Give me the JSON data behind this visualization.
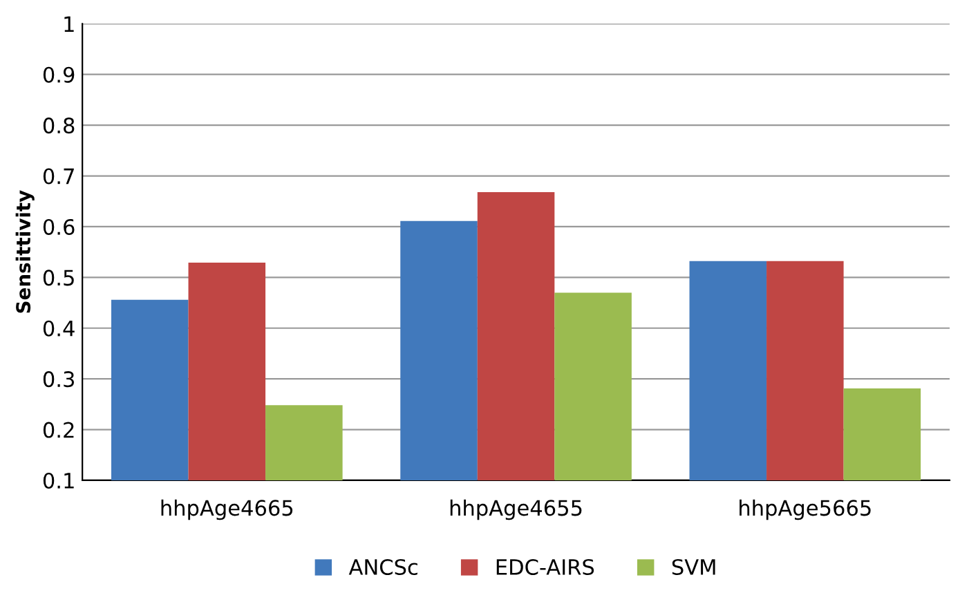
{
  "chart_data": {
    "type": "bar",
    "ylabel": "Sensittivity",
    "categories": [
      "hhpAge4665",
      "hhpAge4655",
      "hhpAge5665"
    ],
    "series": [
      {
        "name": "ANCSc",
        "color": "#4179bc",
        "values": [
          0.456,
          0.611,
          0.532
        ]
      },
      {
        "name": "EDC-AIRS",
        "color": "#c04644",
        "values": [
          0.529,
          0.668,
          0.532
        ]
      },
      {
        "name": "SVM",
        "color": "#9bbb50",
        "values": [
          0.248,
          0.47,
          0.281
        ]
      }
    ],
    "ylim": [
      0.1,
      1
    ],
    "yticks": [
      0.1,
      0.2,
      0.3,
      0.4,
      0.5,
      0.6,
      0.7,
      0.8,
      0.9,
      1
    ],
    "grid": "y",
    "legend": "bottom"
  }
}
